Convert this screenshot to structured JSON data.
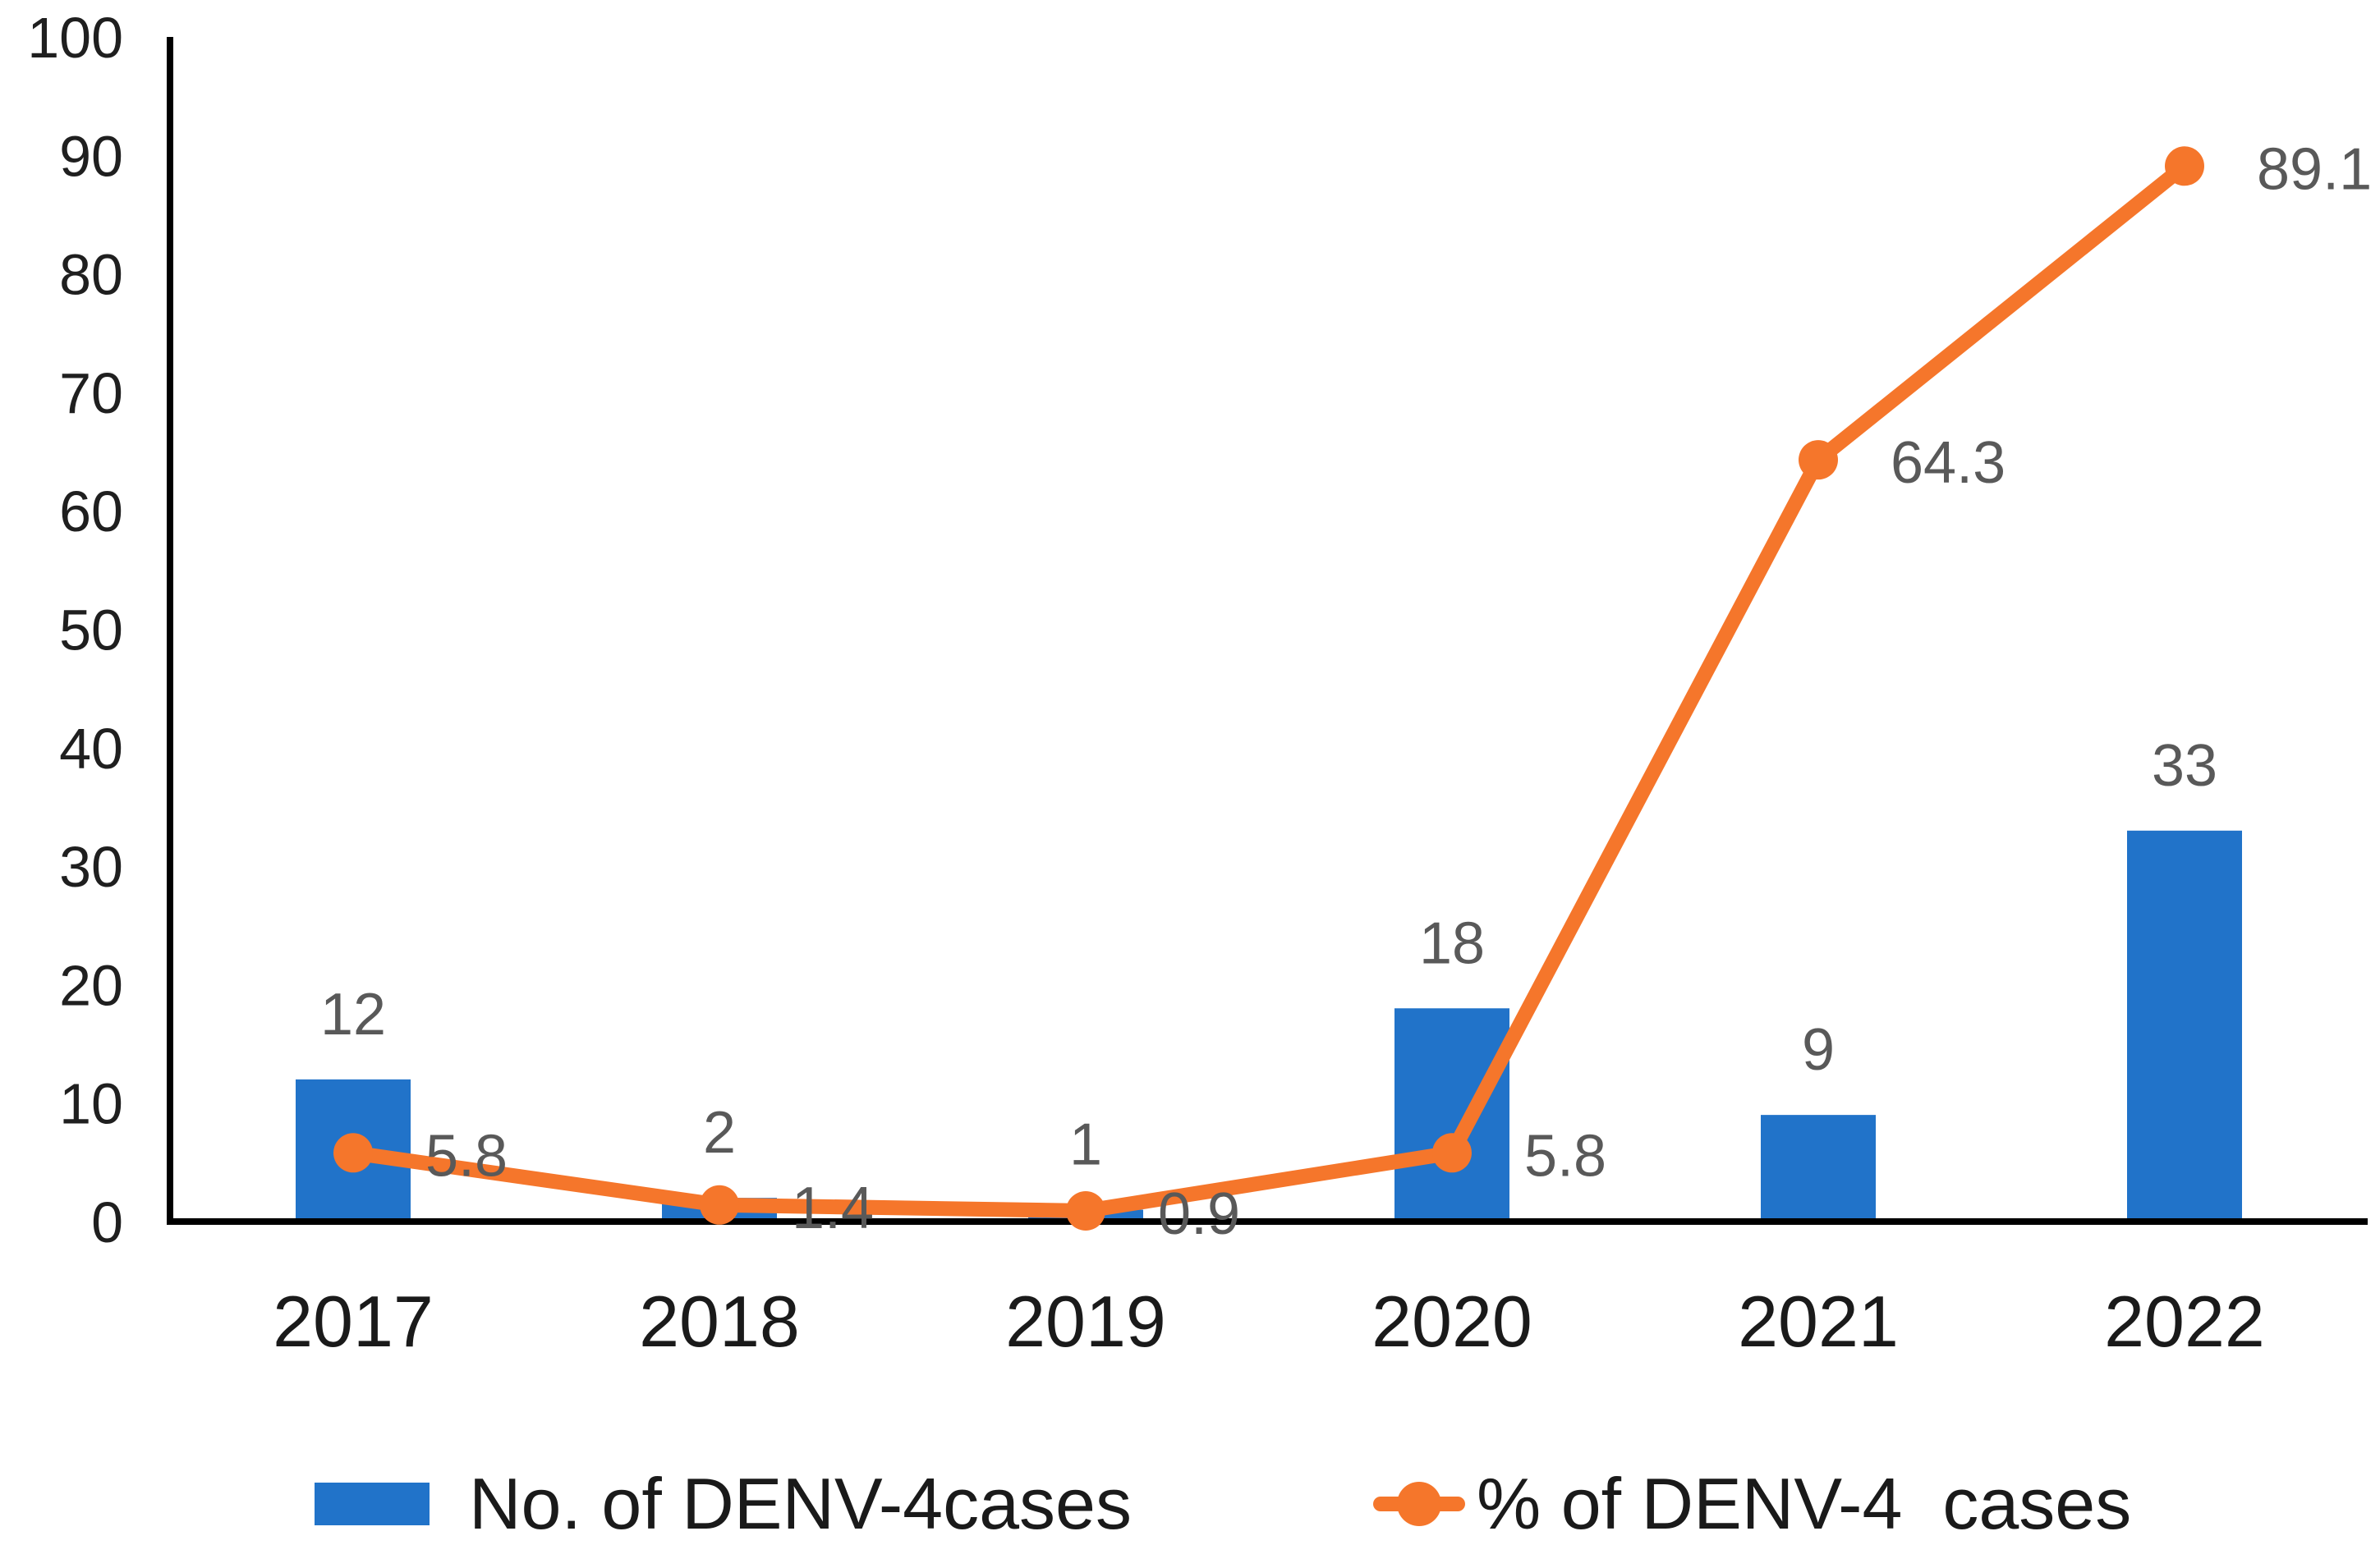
{
  "chart_data": {
    "type": "combo-bar-line",
    "title": "",
    "xlabel": "",
    "ylabel": "",
    "categories": [
      "2017",
      "2018",
      "2019",
      "2020",
      "2021",
      "2022"
    ],
    "series": [
      {
        "name": "No. of DENV-4cases",
        "type": "bar",
        "color": "#2173C9",
        "values": [
          12,
          2,
          1,
          18,
          9,
          33
        ],
        "data_labels": [
          "12",
          "2",
          "1",
          "18",
          "9",
          "33"
        ]
      },
      {
        "name": "% of DENV-4  cases",
        "type": "line",
        "color": "#F5762B",
        "marker": "circle",
        "values": [
          5.8,
          1.4,
          0.9,
          5.8,
          64.3,
          89.1
        ],
        "data_labels": [
          "5.8",
          "1.4",
          "0.9",
          "5.8",
          "64.3",
          "89.1"
        ]
      }
    ],
    "y_axis": {
      "min": 0,
      "max": 100,
      "step": 10,
      "tick_labels": [
        "0",
        "10",
        "20",
        "30",
        "40",
        "50",
        "60",
        "70",
        "80",
        "90",
        "100"
      ]
    },
    "ylim": [
      0,
      100
    ],
    "grid": false,
    "legend_position": "bottom",
    "axis_line_color": "#000000",
    "data_label_color": "#595959",
    "tick_label_color": "#1f1f1f"
  },
  "legend": {
    "items": [
      {
        "label": "No. of DENV-4cases",
        "marker": "bar-swatch"
      },
      {
        "label": "% of DENV-4  cases",
        "marker": "line-dot-marker"
      }
    ]
  }
}
